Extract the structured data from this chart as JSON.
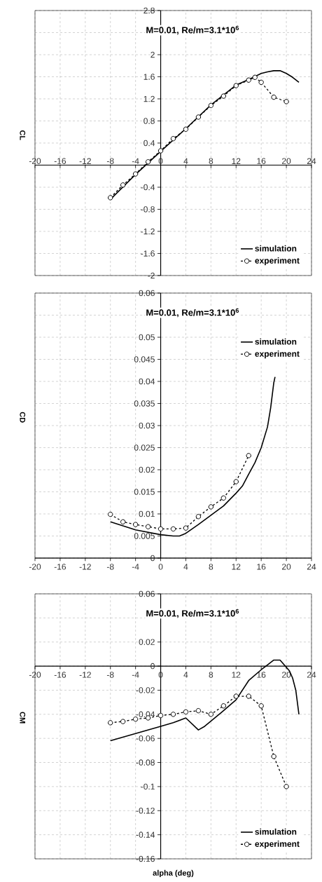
{
  "chart_data": [
    {
      "type": "line",
      "title": "M=0.01, Re/m=3.1*10$^{6}$",
      "ylabel": "CL",
      "xlim": [
        -20,
        24
      ],
      "ylim": [
        -2,
        2.8
      ],
      "xticks": [
        -20,
        -16,
        -12,
        -8,
        -4,
        0,
        4,
        8,
        12,
        16,
        20,
        24
      ],
      "yticks": [
        -2,
        -1.6,
        -1.2,
        -0.8,
        -0.4,
        {
          "value": 0,
          "label": null
        },
        0.4,
        0.8,
        1.2,
        1.6,
        2,
        {
          "value": 2.4,
          "label": null
        },
        2.8
      ],
      "grid": true,
      "legend": "bottom right",
      "series": [
        {
          "name": "simulation",
          "color": "#000000",
          "marker": "none",
          "line_style": "solid",
          "x": [
            -8,
            -4,
            0,
            4,
            8,
            12,
            14,
            16,
            17,
            18,
            19,
            20,
            21,
            22
          ],
          "values": [
            -0.62,
            -0.17,
            0.25,
            0.66,
            1.09,
            1.45,
            1.55,
            1.66,
            1.69,
            1.71,
            1.71,
            1.66,
            1.59,
            1.5
          ]
        },
        {
          "name": "experiment",
          "color": "#000000",
          "marker": "circle",
          "line_style": "dashed",
          "x": [
            -8,
            -6,
            -4,
            -2,
            0,
            2,
            4,
            6,
            8,
            10,
            12,
            14,
            15,
            16,
            18,
            20
          ],
          "values": [
            -0.59,
            -0.36,
            -0.16,
            0.06,
            0.26,
            0.48,
            0.65,
            0.87,
            1.08,
            1.25,
            1.44,
            1.54,
            1.59,
            1.5,
            1.23,
            1.15
          ]
        }
      ]
    },
    {
      "type": "line",
      "title": "M=0.01, Re/m=3.1*10$^{6}$",
      "ylabel": "CD",
      "xlim": [
        -20,
        24
      ],
      "ylim": [
        0,
        0.06
      ],
      "xticks": [
        -20,
        -16,
        -12,
        -8,
        -4,
        0,
        4,
        8,
        12,
        16,
        20,
        24
      ],
      "yticks": [
        0,
        0.005,
        0.01,
        0.015,
        0.02,
        0.025,
        0.03,
        0.035,
        0.04,
        0.045,
        0.05,
        {
          "value": 0.055,
          "label": null
        },
        0.06
      ],
      "grid": true,
      "legend": "top right",
      "series": [
        {
          "name": "simulation",
          "color": "#000000",
          "marker": "none",
          "line_style": "solid",
          "x": [
            -8,
            -4,
            0,
            2,
            3,
            4,
            6,
            8,
            10,
            12,
            13,
            14,
            15,
            16,
            17,
            17.5,
            18,
            18.2
          ],
          "values": [
            0.0082,
            0.0064,
            0.0053,
            0.005,
            0.005,
            0.0056,
            0.0076,
            0.0097,
            0.0118,
            0.0147,
            0.0163,
            0.019,
            0.0216,
            0.025,
            0.0297,
            0.034,
            0.0397,
            0.041
          ]
        },
        {
          "name": "experiment",
          "color": "#000000",
          "marker": "circle",
          "line_style": "dashed",
          "x": [
            -8,
            -6,
            -4,
            -2,
            0,
            2,
            4,
            6,
            8,
            10,
            12,
            14
          ],
          "values": [
            0.0099,
            0.0082,
            0.0076,
            0.0071,
            0.0066,
            0.0066,
            0.0068,
            0.0094,
            0.0116,
            0.0136,
            0.0173,
            0.0232
          ]
        }
      ]
    },
    {
      "type": "line",
      "title": "M=0.01, Re/m=3.1*10$^{6}$",
      "ylabel": "CM",
      "xlabel": "alpha (deg)",
      "xlim": [
        -20,
        24
      ],
      "ylim": [
        -0.16,
        0.06
      ],
      "xticks": [
        -20,
        -16,
        -12,
        -8,
        -4,
        0,
        4,
        8,
        12,
        16,
        20,
        24
      ],
      "yticks": [
        -0.16,
        -0.14,
        -0.12,
        -0.1,
        -0.08,
        -0.06,
        -0.04,
        -0.02,
        0,
        0.02,
        {
          "value": 0.04,
          "label": null
        },
        0.06
      ],
      "grid": true,
      "legend": "bottom right",
      "series": [
        {
          "name": "simulation",
          "color": "#000000",
          "marker": "none",
          "line_style": "solid",
          "x": [
            -8,
            -4,
            0,
            2,
            4,
            6,
            7,
            10,
            12,
            14,
            16,
            17,
            18,
            19,
            20,
            20.5,
            21,
            21.5,
            22
          ],
          "values": [
            -0.062,
            -0.056,
            -0.05,
            -0.047,
            -0.043,
            -0.053,
            -0.05,
            -0.037,
            -0.028,
            -0.012,
            -0.003,
            0.001,
            0.005,
            0.005,
            -0.001,
            -0.004,
            -0.01,
            -0.02,
            -0.04
          ]
        },
        {
          "name": "experiment",
          "color": "#000000",
          "marker": "circle",
          "line_style": "dashed",
          "x": [
            -8,
            -6,
            -4,
            -2,
            0,
            2,
            4,
            6,
            8,
            10,
            12,
            14,
            16,
            18,
            20
          ],
          "values": [
            -0.047,
            -0.046,
            -0.044,
            -0.043,
            -0.041,
            -0.04,
            -0.038,
            -0.037,
            -0.04,
            -0.033,
            -0.025,
            -0.025,
            -0.033,
            -0.075,
            -0.1
          ]
        }
      ]
    }
  ]
}
